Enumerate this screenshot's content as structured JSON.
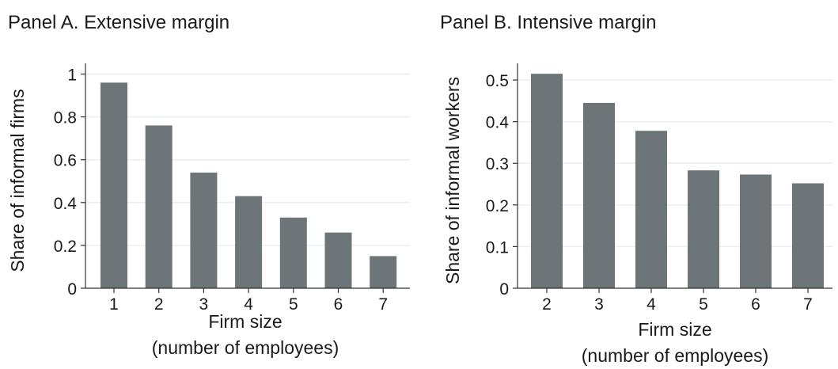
{
  "chart_data": [
    {
      "type": "bar",
      "title": "Panel A. Extensive margin",
      "xlabel": "Firm size",
      "xlabel_sub": "(number of employees)",
      "ylabel": "Share of informal firms",
      "categories": [
        "1",
        "2",
        "3",
        "4",
        "5",
        "6",
        "7"
      ],
      "values": [
        0.96,
        0.76,
        0.54,
        0.43,
        0.33,
        0.26,
        0.15
      ],
      "ylim": [
        0,
        1.05
      ],
      "yticks": [
        0,
        0.2,
        0.4,
        0.6,
        0.8,
        1
      ],
      "ytick_labels": [
        "0",
        "0.2",
        "0.4",
        "0.6",
        "0.8",
        "1"
      ],
      "grid": true,
      "bar_color": "#6e7579"
    },
    {
      "type": "bar",
      "title": "Panel B. Intensive margin",
      "xlabel": "Firm size",
      "xlabel_sub": "(number of employees)",
      "ylabel": "Share of informal workers",
      "categories": [
        "2",
        "3",
        "4",
        "5",
        "6",
        "7"
      ],
      "values": [
        0.515,
        0.445,
        0.378,
        0.283,
        0.273,
        0.252
      ],
      "ylim": [
        0,
        0.54
      ],
      "yticks": [
        0,
        0.1,
        0.2,
        0.3,
        0.4,
        0.5
      ],
      "ytick_labels": [
        "0",
        "0.1",
        "0.2",
        "0.3",
        "0.4",
        "0.5"
      ],
      "grid": true,
      "bar_color": "#6e7579"
    }
  ]
}
